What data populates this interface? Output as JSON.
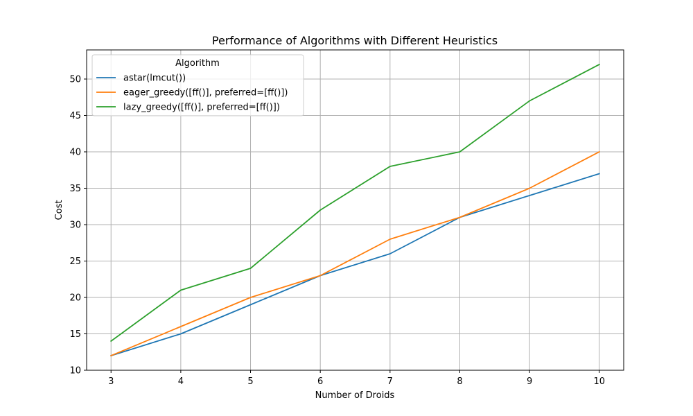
{
  "chart_data": {
    "type": "line",
    "title": "Performance of Algorithms with Different Heuristics",
    "xlabel": "Number of Droids",
    "ylabel": "Cost",
    "x": [
      3,
      4,
      5,
      6,
      7,
      8,
      9,
      10
    ],
    "x_ticks": [
      "3",
      "4",
      "5",
      "6",
      "7",
      "8",
      "9",
      "10"
    ],
    "y_ticks": [
      "10",
      "15",
      "20",
      "25",
      "30",
      "35",
      "40",
      "45",
      "50"
    ],
    "xlim": [
      2.65,
      10.35
    ],
    "ylim": [
      10,
      54
    ],
    "grid": true,
    "legend": {
      "title": "Algorithm",
      "placement": "top-left"
    },
    "series": [
      {
        "name": "astar(lmcut())",
        "color": "#1f77b4",
        "values": [
          12,
          15,
          19,
          23,
          26,
          31,
          34,
          37
        ]
      },
      {
        "name": "eager_greedy([ff()], preferred=[ff()])",
        "color": "#ff7f0e",
        "values": [
          12,
          16,
          20,
          23,
          28,
          31,
          35,
          40
        ]
      },
      {
        "name": "lazy_greedy([ff()], preferred=[ff()])",
        "color": "#2ca02c",
        "values": [
          14,
          21,
          24,
          32,
          38,
          40,
          47,
          52
        ]
      }
    ]
  }
}
